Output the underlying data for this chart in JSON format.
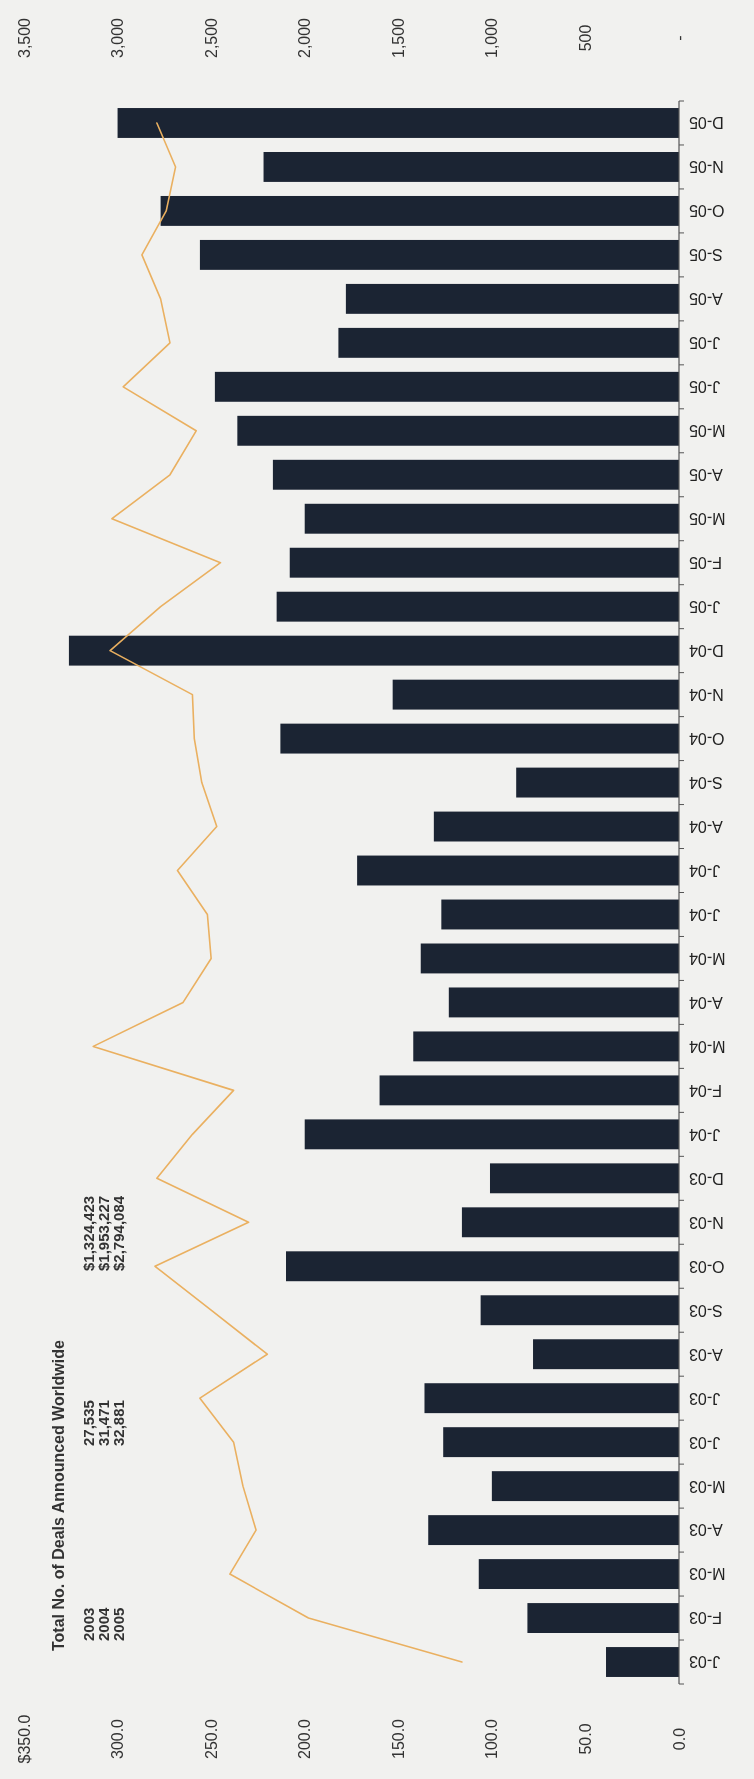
{
  "chart_data": {
    "type": "bar",
    "orientation": "horizontal",
    "categories": [
      "D-05",
      "N-05",
      "O-05",
      "S-05",
      "A-05",
      "J-05",
      "J-05",
      "M-05",
      "A-05",
      "M-05",
      "F-05",
      "J-05",
      "D-04",
      "N-04",
      "O-04",
      "S-04",
      "A-04",
      "J-04",
      "J-04",
      "M-04",
      "A-04",
      "M-04",
      "F-04",
      "J-04",
      "D-03",
      "N-03",
      "O-03",
      "S-03",
      "A-03",
      "J-03",
      "J-03",
      "M-03",
      "A-03",
      "M-03",
      "F-03",
      "J-03"
    ],
    "series": [
      {
        "color": "#1b2433",
        "values": [
          300,
          222,
          277,
          256,
          178,
          182,
          248,
          236,
          217,
          200,
          208,
          215,
          326,
          153,
          213,
          87,
          131,
          172,
          127,
          138,
          123,
          142,
          160,
          200,
          101,
          116,
          210,
          106,
          78,
          136,
          126,
          100,
          134,
          107,
          81,
          39
        ]
      },
      {
        "type": "line",
        "axis": "x2",
        "color": "#eab060",
        "values": [
          2790,
          2690,
          2740,
          2870,
          2770,
          2720,
          2970,
          2580,
          2720,
          3030,
          2450,
          2770,
          3040,
          2600,
          2590,
          2550,
          2470,
          2680,
          2520,
          2500,
          2650,
          3130,
          2380,
          2600,
          2790,
          2300,
          2800,
          2500,
          2200,
          2560,
          2380,
          2330,
          2260,
          2400,
          1980,
          1160
        ]
      }
    ],
    "xlim": [
      350,
      0
    ],
    "xticks": [
      {
        "value": 350,
        "label": "$350.0"
      },
      {
        "value": 300,
        "label": "300.0"
      },
      {
        "value": 250,
        "label": "250.0"
      },
      {
        "value": 200,
        "label": "200.0"
      },
      {
        "value": 150,
        "label": "150.0"
      },
      {
        "value": 100,
        "label": "100.0"
      },
      {
        "value": 50,
        "label": "50.0"
      },
      {
        "value": 0,
        "label": "0.0"
      }
    ],
    "x2lim": [
      3500,
      0
    ],
    "x2ticks": [
      {
        "value": 3500,
        "label": "3,500"
      },
      {
        "value": 3000,
        "label": "3,000"
      },
      {
        "value": 2500,
        "label": "2,500"
      },
      {
        "value": 2000,
        "label": "2,000"
      },
      {
        "value": 1500,
        "label": "1,500"
      },
      {
        "value": 1000,
        "label": "1,000"
      },
      {
        "value": 500,
        "label": "500"
      },
      {
        "value": 0,
        "label": "-"
      }
    ],
    "annotations": [
      "Total No. of Deals Announced Worldwide",
      "2003",
      "27,535",
      "$1,324,423",
      "2004",
      "31,471",
      "$1,953,227",
      "2005",
      "32,881",
      "$2,794,084"
    ]
  }
}
